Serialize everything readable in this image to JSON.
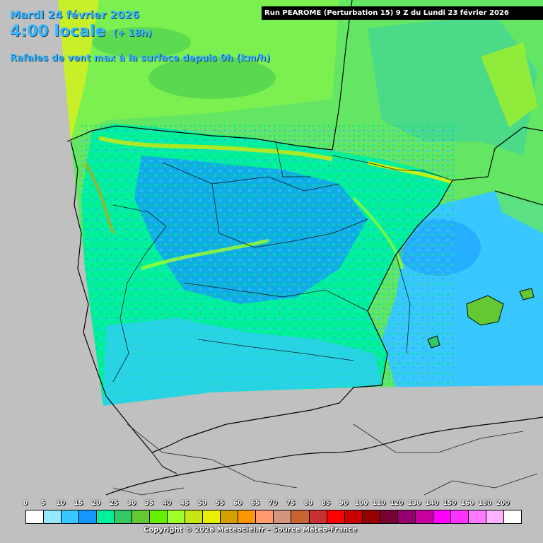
{
  "header": {
    "date": "Mardi 24 février 2026",
    "time": "4:00 locale",
    "lead": "(+ 18h)",
    "parameter": "Rafales de vent max à la surface depuis 0h (km/h)",
    "run": "Run PEAROME (Perturbation 15) 9 Z du Lundi 23 février 2026"
  },
  "legend": {
    "labels": [
      "0",
      "5",
      "10",
      "15",
      "20",
      "25",
      "30",
      "35",
      "40",
      "45",
      "50",
      "55",
      "60",
      "65",
      "70",
      "75",
      "80",
      "85",
      "90",
      "100",
      "110",
      "120",
      "130",
      "140",
      "150",
      "160",
      "180",
      "200"
    ],
    "colors": [
      "#ffffff",
      "#96e8ff",
      "#38c8ff",
      "#1496ff",
      "#00f09b",
      "#32c864",
      "#64c832",
      "#64f000",
      "#a0ff28",
      "#c8e614",
      "#e6f000",
      "#d2a000",
      "#ff9600",
      "#ff9b6e",
      "#d2967d",
      "#c86432",
      "#c83232",
      "#ff0000",
      "#c80000",
      "#960000",
      "#780032",
      "#96006e",
      "#c800a0",
      "#ff00ff",
      "#ff32ff",
      "#ff78ff",
      "#ffb4ff",
      "#ffffff"
    ]
  },
  "footer": {
    "copyright": "Copyright © 2026 Meteociel.fr - Source Météo-France"
  }
}
